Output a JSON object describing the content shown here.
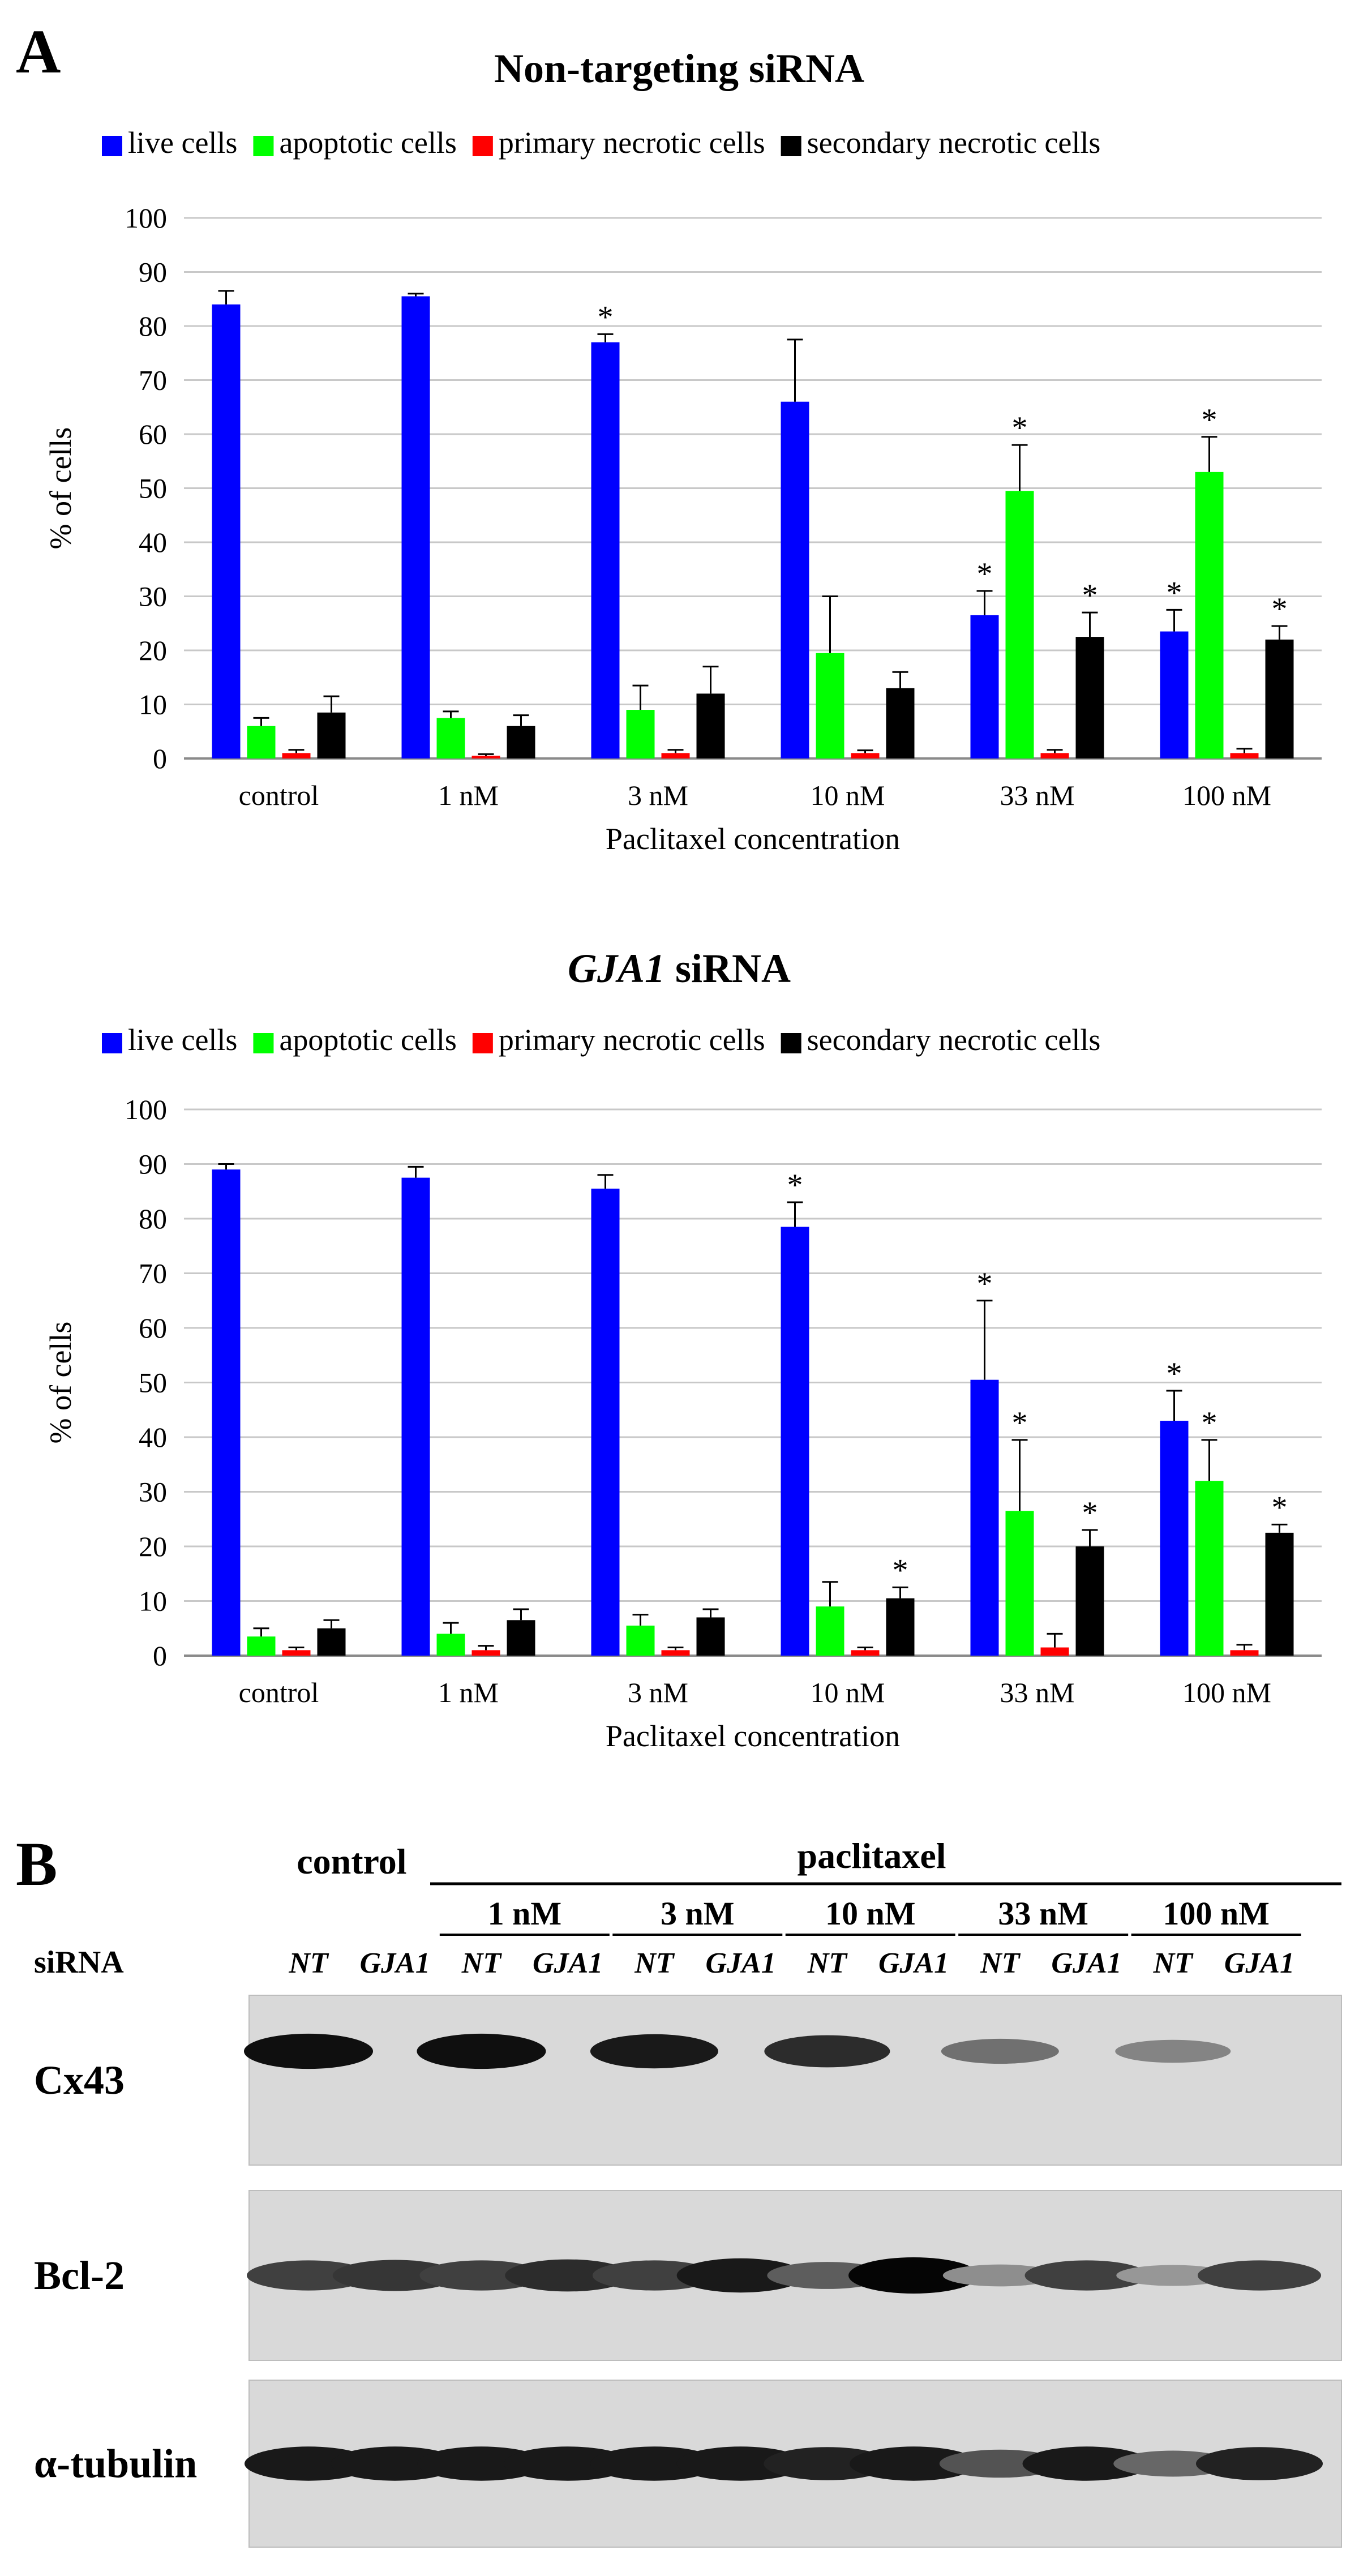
{
  "panel_a_label": "A",
  "panel_b_label": "B",
  "colors": {
    "live": "#0000ff",
    "apoptotic": "#00ff00",
    "primary": "#ff0000",
    "secondary": "#000000"
  },
  "chart_data": [
    {
      "type": "bar",
      "title": "Non-targeting siRNA",
      "title_italic": "",
      "xlabel": "Paclitaxel concentration",
      "ylabel": "% of cells",
      "ylim": [
        0,
        100
      ],
      "yticks": [
        "0",
        "10",
        "20",
        "30",
        "40",
        "50",
        "60",
        "70",
        "80",
        "90",
        "100"
      ],
      "categories": [
        "control",
        "1 nM",
        "3 nM",
        "10 nM",
        "33 nM",
        "100 nM"
      ],
      "series": [
        {
          "name": "live cells",
          "color": "#0000ff",
          "values": [
            84,
            85.5,
            77,
            66,
            26.5,
            23.5
          ],
          "errors": [
            2.5,
            0.5,
            1.5,
            11.5,
            4.5,
            4
          ],
          "significant": [
            false,
            false,
            true,
            false,
            true,
            true
          ]
        },
        {
          "name": "apoptotic cells",
          "color": "#00ff00",
          "values": [
            6,
            7.5,
            9,
            19.5,
            49.5,
            53
          ],
          "errors": [
            1.5,
            1.2,
            4.5,
            10.5,
            8.5,
            6.5
          ],
          "significant": [
            false,
            false,
            false,
            false,
            true,
            true
          ]
        },
        {
          "name": "primary necrotic cells",
          "color": "#ff0000",
          "values": [
            1,
            0.5,
            1,
            1,
            1,
            1
          ],
          "errors": [
            0.6,
            0.3,
            0.6,
            0.5,
            0.6,
            0.8
          ],
          "significant": [
            false,
            false,
            false,
            false,
            false,
            false
          ]
        },
        {
          "name": "secondary necrotic cells",
          "color": "#000000",
          "values": [
            8.5,
            6,
            12,
            13,
            22.5,
            22
          ],
          "errors": [
            3,
            2,
            5,
            3,
            4.5,
            2.5
          ],
          "significant": [
            false,
            false,
            false,
            false,
            true,
            true
          ]
        }
      ],
      "asterisk": "*"
    },
    {
      "type": "bar",
      "title": " siRNA",
      "title_italic": "GJA1",
      "xlabel": "Paclitaxel concentration",
      "ylabel": "% of cells",
      "ylim": [
        0,
        100
      ],
      "yticks": [
        "0",
        "10",
        "20",
        "30",
        "40",
        "50",
        "60",
        "70",
        "80",
        "90",
        "100"
      ],
      "categories": [
        "control",
        "1 nM",
        "3 nM",
        "10 nM",
        "33 nM",
        "100 nM"
      ],
      "series": [
        {
          "name": "live cells",
          "color": "#0000ff",
          "values": [
            89,
            87.5,
            85.5,
            78.5,
            50.5,
            43
          ],
          "errors": [
            1,
            2,
            2.5,
            4.5,
            14.5,
            5.5
          ],
          "significant": [
            false,
            false,
            false,
            true,
            true,
            true
          ]
        },
        {
          "name": "apoptotic cells",
          "color": "#00ff00",
          "values": [
            3.5,
            4,
            5.5,
            9,
            26.5,
            32
          ],
          "errors": [
            1.5,
            2,
            2,
            4.5,
            13,
            7.5
          ],
          "significant": [
            false,
            false,
            false,
            false,
            true,
            true
          ]
        },
        {
          "name": "primary necrotic cells",
          "color": "#ff0000",
          "values": [
            1,
            1,
            1,
            1,
            1.5,
            1
          ],
          "errors": [
            0.5,
            0.8,
            0.5,
            0.5,
            2.5,
            1
          ],
          "significant": [
            false,
            false,
            false,
            false,
            false,
            false
          ]
        },
        {
          "name": "secondary necrotic cells",
          "color": "#000000",
          "values": [
            5,
            6.5,
            7,
            10.5,
            20,
            22.5
          ],
          "errors": [
            1.5,
            2,
            1.5,
            2,
            3,
            1.5
          ],
          "significant": [
            false,
            false,
            false,
            true,
            true,
            true
          ]
        }
      ],
      "asterisk": "*"
    }
  ],
  "western": {
    "control_label": "control",
    "paclitaxel_label": "paclitaxel",
    "siRNA_label": "siRNA",
    "concentrations": [
      "1 nM",
      "3 nM",
      "10 nM",
      "33 nM",
      "100 nM"
    ],
    "lanes": [
      "NT",
      "GJA1",
      "NT",
      "GJA1",
      "NT",
      "GJA1",
      "NT",
      "GJA1",
      "NT",
      "GJA1",
      "NT",
      "GJA1"
    ],
    "blots": [
      {
        "label": "Cx43",
        "intensity": [
          0.95,
          0,
          0.95,
          0,
          0.9,
          0,
          0.8,
          0,
          0.45,
          0,
          0.35,
          0
        ]
      },
      {
        "label": "Bcl-2",
        "intensity": [
          0.7,
          0.75,
          0.7,
          0.8,
          0.7,
          0.9,
          0.55,
          1.0,
          0.3,
          0.7,
          0.25,
          0.7
        ]
      },
      {
        "label": "α-tubulin",
        "intensity": [
          0.9,
          0.9,
          0.9,
          0.9,
          0.9,
          0.9,
          0.85,
          0.9,
          0.6,
          0.9,
          0.5,
          0.85
        ]
      }
    ]
  }
}
